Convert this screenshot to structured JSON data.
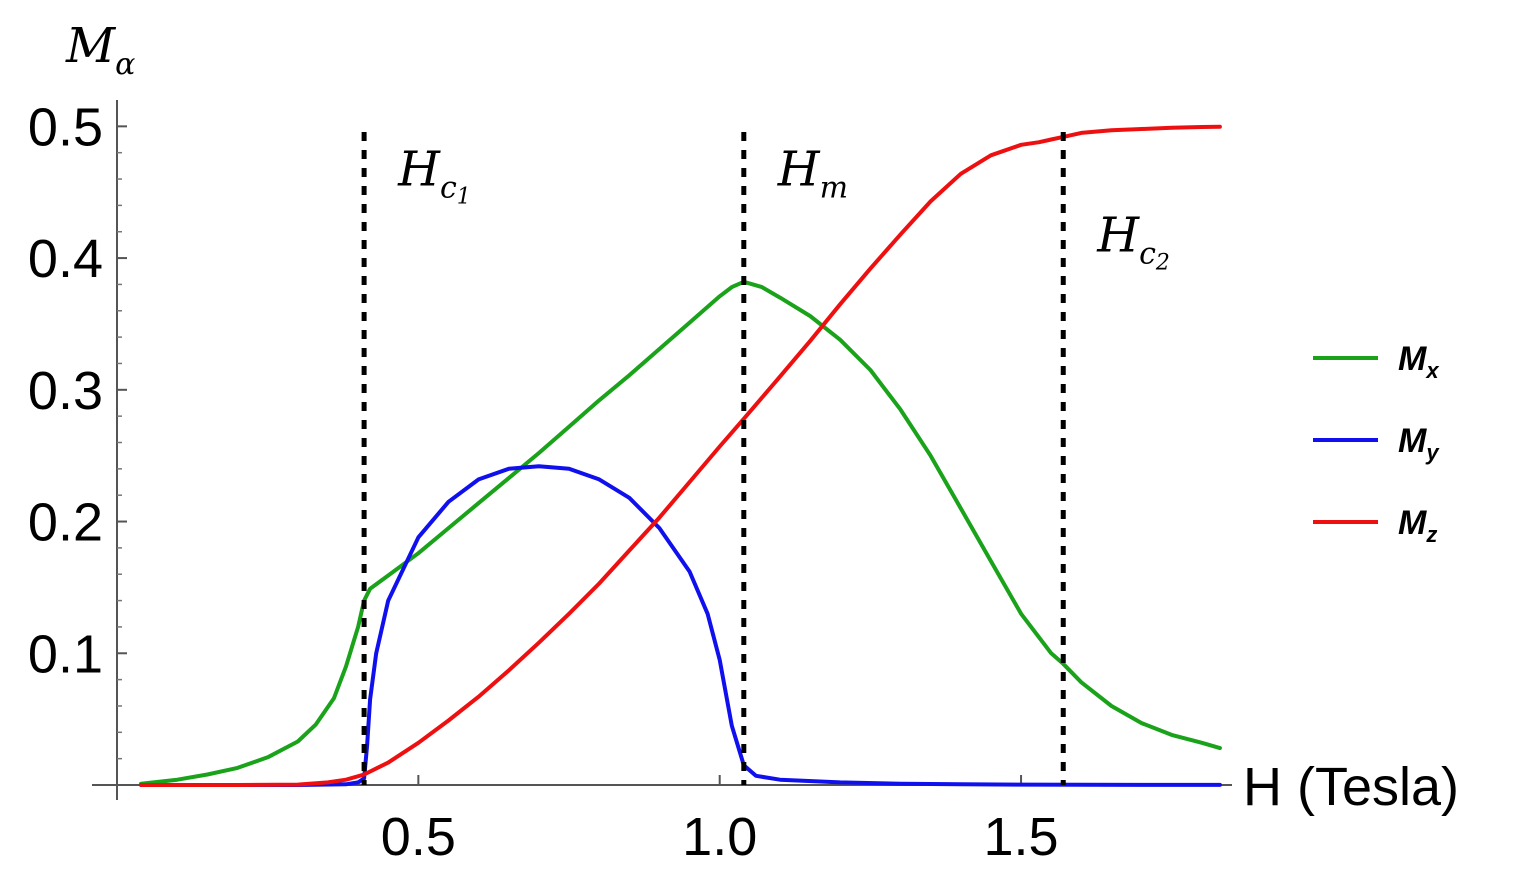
{
  "chart_data": {
    "type": "line",
    "xlabel": "H (Tesla)",
    "ylabel": {
      "main": "M",
      "sub": "α"
    },
    "xlim": [
      0,
      1.85
    ],
    "ylim": [
      0,
      0.52
    ],
    "xticks": [
      0.5,
      1.0,
      1.5
    ],
    "xtick_labels": [
      "0.5",
      "1.0",
      "1.5"
    ],
    "yticks": [
      0.1,
      0.2,
      0.3,
      0.4,
      0.5
    ],
    "ytick_labels": [
      "0.1",
      "0.2",
      "0.3",
      "0.4",
      "0.5"
    ],
    "grid": false,
    "legend_position": "right",
    "vertical_lines": [
      {
        "x": 0.41,
        "label_main": "H",
        "label_sub": "c",
        "label_subsub": "1",
        "label_y": 0.455
      },
      {
        "x": 1.04,
        "label_main": "H",
        "label_sub": "m",
        "label_subsub": "",
        "label_y": 0.455
      },
      {
        "x": 1.57,
        "label_main": "H",
        "label_sub": "c",
        "label_subsub": "2",
        "label_y": 0.405
      }
    ],
    "series": [
      {
        "name": "M",
        "name_sub": "x",
        "color": "#1aa31a",
        "x": [
          0.04,
          0.1,
          0.15,
          0.2,
          0.25,
          0.3,
          0.33,
          0.36,
          0.38,
          0.4,
          0.41,
          0.42,
          0.45,
          0.5,
          0.55,
          0.6,
          0.65,
          0.7,
          0.75,
          0.8,
          0.85,
          0.9,
          0.95,
          1.0,
          1.02,
          1.04,
          1.07,
          1.1,
          1.15,
          1.2,
          1.25,
          1.3,
          1.35,
          1.4,
          1.45,
          1.5,
          1.55,
          1.57,
          1.6,
          1.65,
          1.7,
          1.75,
          1.8,
          1.83
        ],
        "y": [
          0.001,
          0.004,
          0.008,
          0.013,
          0.021,
          0.033,
          0.046,
          0.066,
          0.09,
          0.12,
          0.14,
          0.149,
          0.159,
          0.176,
          0.195,
          0.214,
          0.233,
          0.252,
          0.272,
          0.292,
          0.311,
          0.331,
          0.351,
          0.371,
          0.378,
          0.382,
          0.378,
          0.37,
          0.356,
          0.338,
          0.315,
          0.285,
          0.25,
          0.21,
          0.17,
          0.13,
          0.1,
          0.092,
          0.078,
          0.06,
          0.047,
          0.038,
          0.032,
          0.028
        ]
      },
      {
        "name": "M",
        "name_sub": "y",
        "color": "#1010ee",
        "x": [
          0.04,
          0.1,
          0.2,
          0.3,
          0.38,
          0.4,
          0.41,
          0.415,
          0.42,
          0.43,
          0.45,
          0.5,
          0.55,
          0.6,
          0.65,
          0.7,
          0.75,
          0.8,
          0.85,
          0.9,
          0.95,
          0.98,
          1.0,
          1.02,
          1.04,
          1.06,
          1.1,
          1.2,
          1.3,
          1.4,
          1.5,
          1.6,
          1.7,
          1.83
        ],
        "y": [
          0.0,
          0.0,
          0.0,
          0.0,
          0.0005,
          0.002,
          0.005,
          0.03,
          0.065,
          0.1,
          0.14,
          0.188,
          0.215,
          0.232,
          0.24,
          0.242,
          0.24,
          0.232,
          0.218,
          0.195,
          0.162,
          0.13,
          0.095,
          0.045,
          0.015,
          0.007,
          0.004,
          0.002,
          0.001,
          0.0005,
          0.0003,
          0.0002,
          0.0001,
          0.0001
        ]
      },
      {
        "name": "M",
        "name_sub": "z",
        "color": "#ee1010",
        "x": [
          0.04,
          0.1,
          0.2,
          0.3,
          0.35,
          0.38,
          0.41,
          0.45,
          0.5,
          0.55,
          0.6,
          0.65,
          0.7,
          0.75,
          0.8,
          0.85,
          0.9,
          0.95,
          1.0,
          1.04,
          1.1,
          1.15,
          1.2,
          1.25,
          1.3,
          1.35,
          1.4,
          1.45,
          1.5,
          1.53,
          1.55,
          1.57,
          1.6,
          1.65,
          1.7,
          1.75,
          1.8,
          1.83
        ],
        "y": [
          0.0,
          0.0,
          0.0,
          0.0003,
          0.002,
          0.004,
          0.008,
          0.017,
          0.032,
          0.049,
          0.067,
          0.087,
          0.108,
          0.13,
          0.153,
          0.178,
          0.203,
          0.23,
          0.257,
          0.278,
          0.31,
          0.337,
          0.365,
          0.392,
          0.418,
          0.443,
          0.464,
          0.478,
          0.486,
          0.488,
          0.49,
          0.492,
          0.495,
          0.497,
          0.498,
          0.499,
          0.4995,
          0.4997
        ]
      }
    ]
  }
}
